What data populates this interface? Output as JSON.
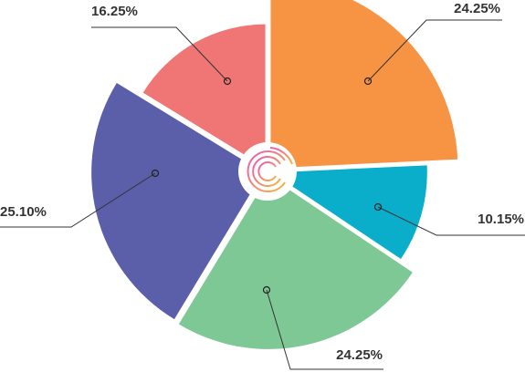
{
  "chart_data": {
    "type": "pie",
    "values": [
      24.25,
      10.15,
      24.25,
      25.1,
      16.25
    ],
    "value_labels": [
      "24.25%",
      "10.15%",
      "24.25%",
      "25.10%",
      "16.25%"
    ],
    "colors": [
      "#f79444",
      "#0aaecb",
      "#7ec896",
      "#5b5ea8",
      "#f07575"
    ]
  }
}
